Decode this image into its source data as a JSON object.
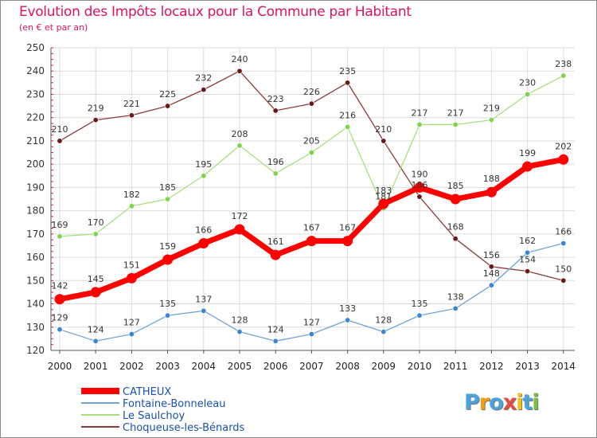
{
  "chart_data": {
    "type": "line",
    "title": "Evolution des Impôts locaux pour la Commune par Habitant",
    "subtitle": "(en € et par an)",
    "categories": [
      "2000",
      "2001",
      "2002",
      "2003",
      "2004",
      "2005",
      "2006",
      "2007",
      "2008",
      "2009",
      "2010",
      "2011",
      "2012",
      "2013",
      "2014"
    ],
    "ylim": [
      120,
      250
    ],
    "yticks": [
      120,
      130,
      140,
      150,
      160,
      170,
      180,
      190,
      200,
      210,
      220,
      230,
      240,
      250
    ],
    "series": [
      {
        "name": "CATHEUX",
        "color": "#ff0000",
        "marker": "#ff0000",
        "values": [
          142,
          145,
          151,
          159,
          166,
          172,
          161,
          167,
          167,
          183,
          190,
          185,
          188,
          199,
          202
        ]
      },
      {
        "name": "Fontaine-Bonneleau",
        "color": "#6fa2d6",
        "marker": "#3a86d0",
        "values": [
          129,
          124,
          127,
          135,
          137,
          128,
          124,
          127,
          133,
          128,
          135,
          138,
          148,
          162,
          166
        ]
      },
      {
        "name": "Le Saulchoy",
        "color": "#a6e07e",
        "marker": "#7ed24c",
        "values": [
          169,
          170,
          182,
          185,
          195,
          208,
          196,
          205,
          216,
          181,
          217,
          217,
          219,
          230,
          238
        ]
      },
      {
        "name": "Choqueuse-les-Bénards",
        "color": "#8a3a3a",
        "marker": "#6a1818",
        "values": [
          210,
          219,
          221,
          225,
          232,
          240,
          223,
          226,
          235,
          210,
          186,
          168,
          156,
          154,
          150
        ]
      }
    ],
    "data_labels": {
      "CATHEUX": [
        "142",
        "145",
        "151",
        "159",
        "166",
        "172",
        "161",
        "167",
        "167",
        "183",
        "190",
        "185",
        "188",
        "199",
        "202"
      ],
      "Fontaine-Bonneleau": [
        "129",
        "124",
        "127",
        "135",
        "137",
        "128",
        "124",
        "127",
        "133",
        "128",
        "135",
        "138",
        "148",
        "162",
        "166"
      ],
      "Le Saulchoy": [
        "169",
        "170",
        "182",
        "185",
        "195",
        "208",
        "196",
        "205",
        "216",
        "181",
        "217",
        "217",
        "219",
        "230",
        "238"
      ],
      "Choqueuse-les-Bénards": [
        "210",
        "219",
        "221",
        "225",
        "232",
        "240",
        "223",
        "226",
        "235",
        "210",
        "186",
        "168",
        "156",
        "154",
        "150"
      ]
    },
    "legend_position": "bottom-left",
    "grid": true
  },
  "brand": {
    "letters": [
      "P",
      "r",
      "o",
      "x",
      "i",
      "t",
      "i"
    ],
    "colors": [
      "#4aa3df",
      "#f39c12",
      "#4aa3df",
      "#e74c3c",
      "#f1c40f",
      "#4aa3df",
      "#7bc043"
    ]
  }
}
